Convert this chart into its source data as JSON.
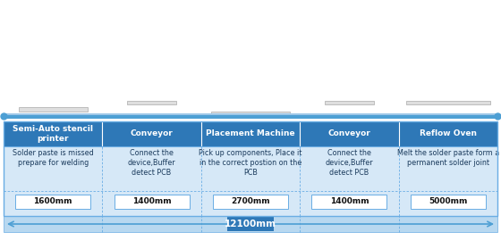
{
  "fig_width": 5.6,
  "fig_height": 2.79,
  "dpi": 100,
  "bg_color": "#ffffff",
  "header_bg": "#2e78b7",
  "header_text_color": "#ffffff",
  "cell_bg": "#d6e8f7",
  "cell_text_color": "#1a3a5c",
  "white_box_bg": "#ffffff",
  "border_color": "#6aade4",
  "dashed_border": "#6aade4",
  "total_bar_color": "#2e78b7",
  "total_text_color": "#ffffff",
  "line_color": "#4d9fd4",
  "total_bottom_bg": "#b8d8f0",
  "columns": [
    {
      "header": "Semi-Auto stencil\nprinter",
      "desc": "Solder paste is missed\nprepare for welding",
      "size": "1600mm"
    },
    {
      "header": "Conveyor",
      "desc": "Connect the\ndevice,Buffer\ndetect PCB",
      "size": "1400mm"
    },
    {
      "header": "Placement Machine",
      "desc": "Pick up components, Place it\nin the correct postion on the\nPCB",
      "size": "2700mm"
    },
    {
      "header": "Conveyor",
      "desc": "Connect the\ndevice,Buffer\ndetect PCB",
      "size": "1400mm"
    },
    {
      "header": "Reflow Oven",
      "desc": "Melt the solder paste form a\npermanent solder joint",
      "size": "5000mm"
    }
  ],
  "total_label": "12100mm",
  "header_fontsize": 6.5,
  "desc_fontsize": 5.8,
  "size_fontsize": 6.5,
  "total_fontsize": 7.5
}
